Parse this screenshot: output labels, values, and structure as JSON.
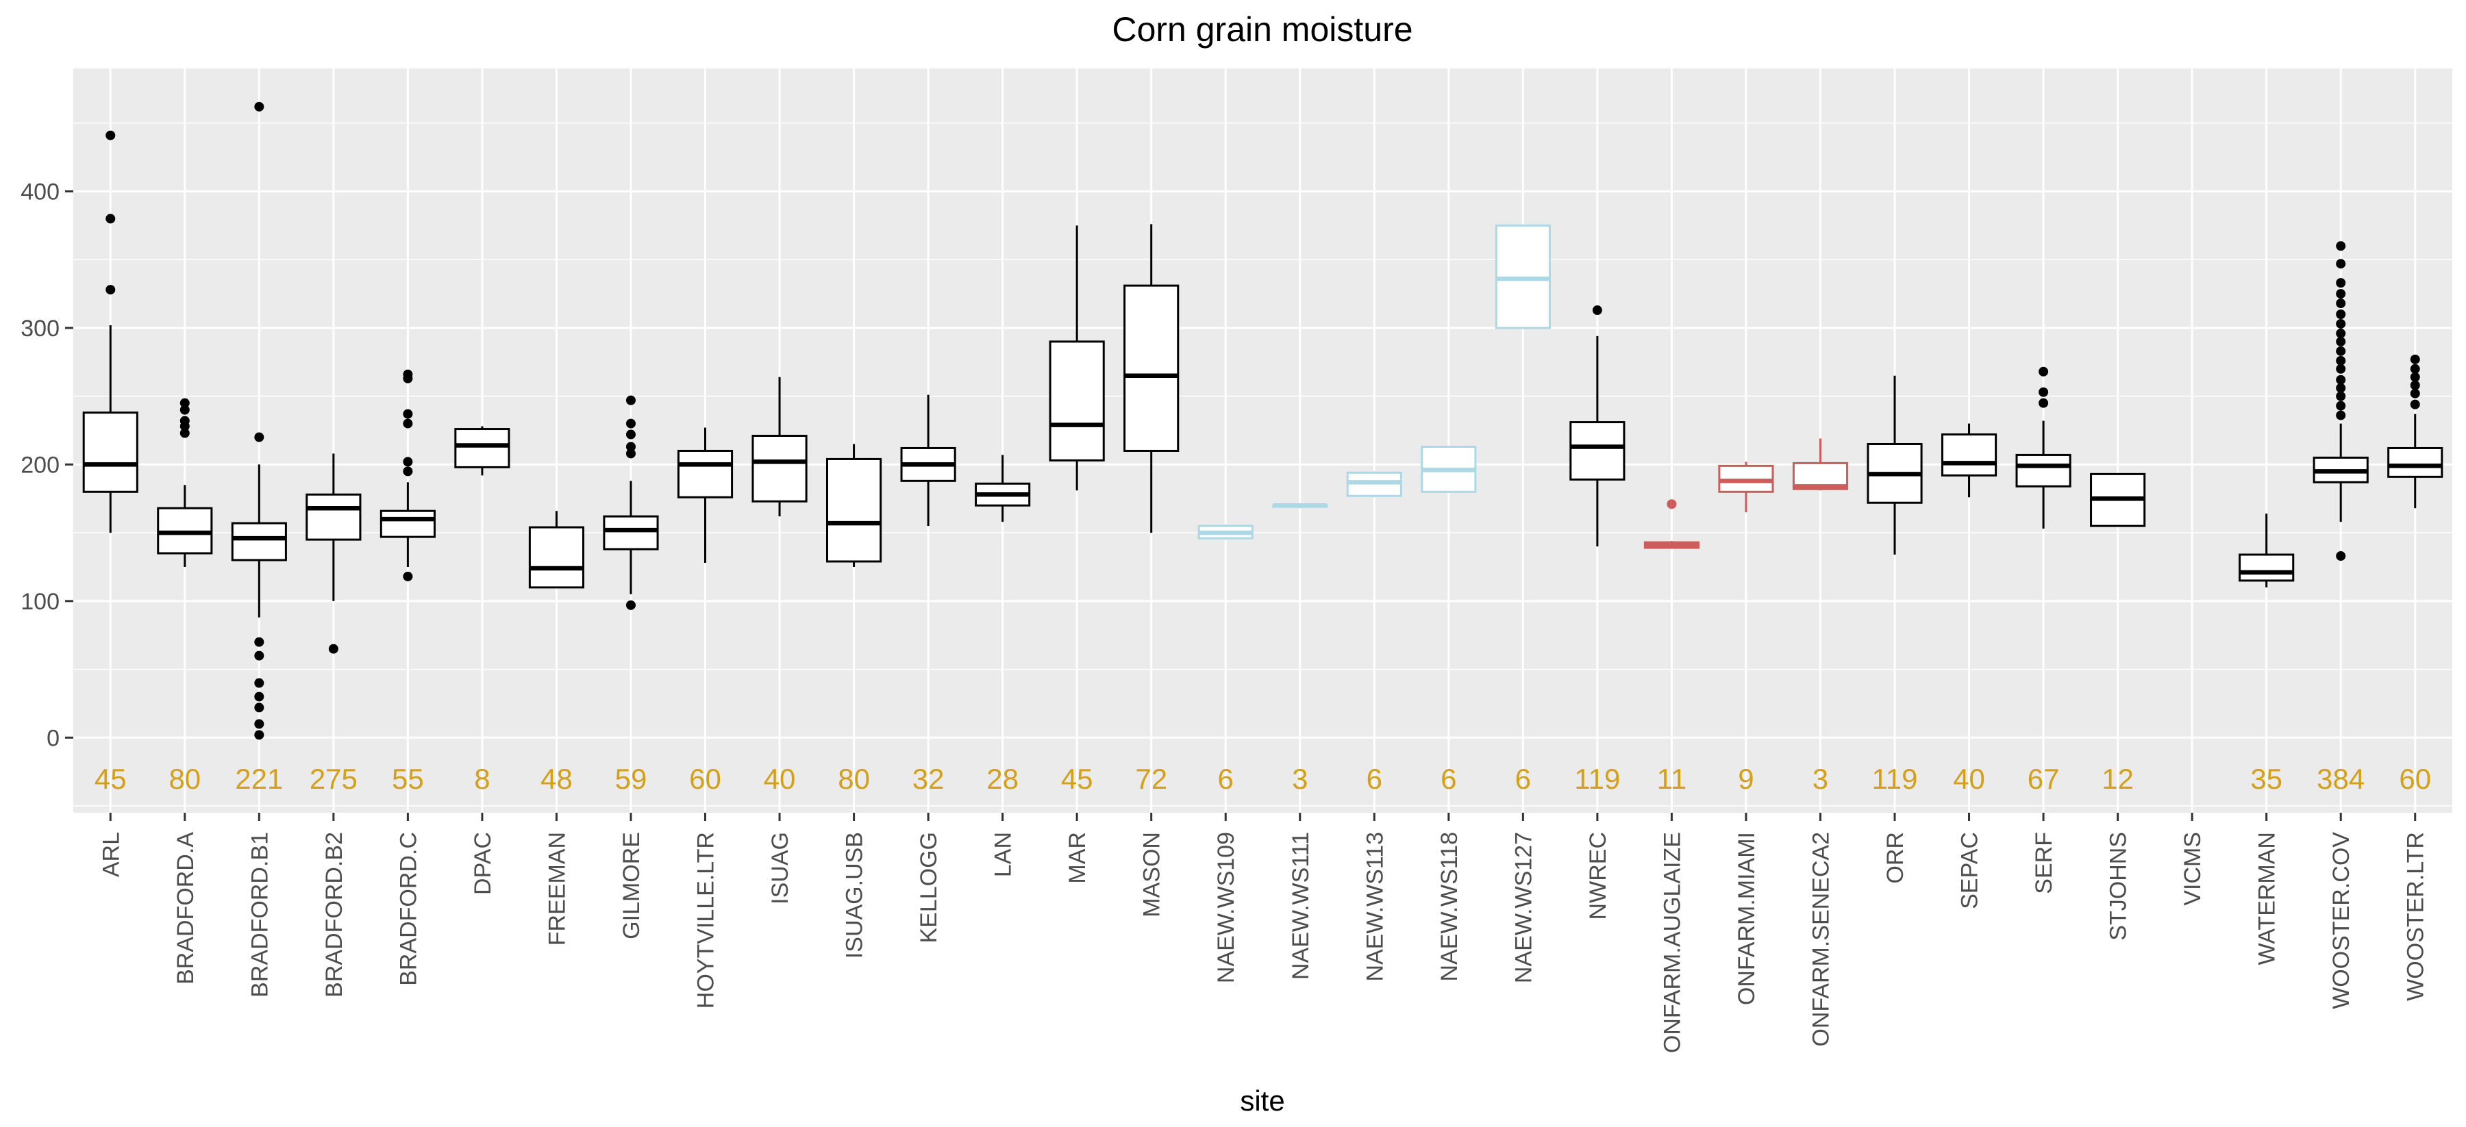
{
  "chart_data": {
    "type": "boxplot",
    "title": "Corn grain moisture",
    "xlabel": "site",
    "ylabel": "",
    "ylim": [
      -55,
      490
    ],
    "yticks": [
      0,
      100,
      200,
      300,
      400
    ],
    "grid": true,
    "legend": "none",
    "colors": {
      "panel": "#ebebeb",
      "grid": "#ffffff",
      "default_box": "#000000",
      "naew_box": "#add8e6",
      "onfarm_box": "#cd5c5c",
      "count_label": "#d4a017",
      "tick": "#4d4d4d"
    },
    "categories": [
      "ARL",
      "BRADFORD.A",
      "BRADFORD.B1",
      "BRADFORD.B2",
      "BRADFORD.C",
      "DPAC",
      "FREEMAN",
      "GILMORE",
      "HOYTVILLE.LTR",
      "ISUAG",
      "ISUAG.USB",
      "KELLOGG",
      "LAN",
      "MAR",
      "MASON",
      "NAEW.WS109",
      "NAEW.WS111",
      "NAEW.WS113",
      "NAEW.WS118",
      "NAEW.WS127",
      "NWREC",
      "ONFARM.AUGLAIZE",
      "ONFARM.MIAMI",
      "ONFARM.SENECA2",
      "ORR",
      "SEPAC",
      "SERF",
      "STJOHNS",
      "VICMS",
      "WATERMAN",
      "WOOSTER.COV",
      "WOOSTER.LTR"
    ],
    "boxes": [
      {
        "site": "ARL",
        "n": "45",
        "color": "#000000",
        "whisker_low": 150,
        "q1": 180,
        "median": 200,
        "q3": 238,
        "whisker_high": 302,
        "outliers": [
          328,
          380,
          441
        ]
      },
      {
        "site": "BRADFORD.A",
        "n": "80",
        "color": "#000000",
        "whisker_low": 125,
        "q1": 135,
        "median": 150,
        "q3": 168,
        "whisker_high": 185,
        "outliers": [
          223,
          228,
          232,
          240,
          245
        ]
      },
      {
        "site": "BRADFORD.B1",
        "n": "221",
        "color": "#000000",
        "whisker_low": 88,
        "q1": 130,
        "median": 146,
        "q3": 157,
        "whisker_high": 200,
        "outliers": [
          2,
          10,
          22,
          30,
          40,
          60,
          70,
          220,
          462
        ]
      },
      {
        "site": "BRADFORD.B2",
        "n": "275",
        "color": "#000000",
        "whisker_low": 100,
        "q1": 145,
        "median": 168,
        "q3": 178,
        "whisker_high": 208,
        "outliers": [
          65
        ]
      },
      {
        "site": "BRADFORD.C",
        "n": "55",
        "color": "#000000",
        "whisker_low": 125,
        "q1": 147,
        "median": 160,
        "q3": 166,
        "whisker_high": 187,
        "outliers": [
          118,
          195,
          202,
          230,
          237,
          263,
          266
        ]
      },
      {
        "site": "DPAC",
        "n": "8",
        "color": "#000000",
        "whisker_low": 192,
        "q1": 198,
        "median": 214,
        "q3": 226,
        "whisker_high": 228,
        "outliers": []
      },
      {
        "site": "FREEMAN",
        "n": "48",
        "color": "#000000",
        "whisker_low": 110,
        "q1": 110,
        "median": 124,
        "q3": 154,
        "whisker_high": 166,
        "outliers": []
      },
      {
        "site": "GILMORE",
        "n": "59",
        "color": "#000000",
        "whisker_low": 105,
        "q1": 138,
        "median": 152,
        "q3": 162,
        "whisker_high": 188,
        "outliers": [
          97,
          208,
          213,
          222,
          230,
          247
        ]
      },
      {
        "site": "HOYTVILLE.LTR",
        "n": "60",
        "color": "#000000",
        "whisker_low": 128,
        "q1": 176,
        "median": 200,
        "q3": 210,
        "whisker_high": 227,
        "outliers": []
      },
      {
        "site": "ISUAG",
        "n": "40",
        "color": "#000000",
        "whisker_low": 162,
        "q1": 173,
        "median": 202,
        "q3": 221,
        "whisker_high": 264,
        "outliers": []
      },
      {
        "site": "ISUAG.USB",
        "n": "80",
        "color": "#000000",
        "whisker_low": 125,
        "q1": 129,
        "median": 157,
        "q3": 204,
        "whisker_high": 215,
        "outliers": []
      },
      {
        "site": "KELLOGG",
        "n": "32",
        "color": "#000000",
        "whisker_low": 155,
        "q1": 188,
        "median": 200,
        "q3": 212,
        "whisker_high": 251,
        "outliers": []
      },
      {
        "site": "LAN",
        "n": "28",
        "color": "#000000",
        "whisker_low": 158,
        "q1": 170,
        "median": 178,
        "q3": 186,
        "whisker_high": 207,
        "outliers": []
      },
      {
        "site": "MAR",
        "n": "45",
        "color": "#000000",
        "whisker_low": 181,
        "q1": 203,
        "median": 229,
        "q3": 290,
        "whisker_high": 375,
        "outliers": []
      },
      {
        "site": "MASON",
        "n": "72",
        "color": "#000000",
        "whisker_low": 150,
        "q1": 210,
        "median": 265,
        "q3": 331,
        "whisker_high": 376,
        "outliers": []
      },
      {
        "site": "NAEW.WS109",
        "n": "6",
        "color": "#add8e6",
        "whisker_low": 145,
        "q1": 146,
        "median": 150,
        "q3": 155,
        "whisker_high": 156,
        "outliers": []
      },
      {
        "site": "NAEW.WS111",
        "n": "3",
        "color": "#add8e6",
        "whisker_low": 168,
        "q1": 169,
        "median": 170,
        "q3": 170,
        "whisker_high": 171,
        "outliers": []
      },
      {
        "site": "NAEW.WS113",
        "n": "6",
        "color": "#add8e6",
        "whisker_low": 176,
        "q1": 177,
        "median": 187,
        "q3": 194,
        "whisker_high": 195,
        "outliers": []
      },
      {
        "site": "NAEW.WS118",
        "n": "6",
        "color": "#add8e6",
        "whisker_low": 180,
        "q1": 180,
        "median": 196,
        "q3": 213,
        "whisker_high": 213,
        "outliers": []
      },
      {
        "site": "NAEW.WS127",
        "n": "6",
        "color": "#add8e6",
        "whisker_low": 300,
        "q1": 300,
        "median": 336,
        "q3": 375,
        "whisker_high": 375,
        "outliers": []
      },
      {
        "site": "NWREC",
        "n": "119",
        "color": "#000000",
        "whisker_low": 140,
        "q1": 189,
        "median": 213,
        "q3": 231,
        "whisker_high": 294,
        "outliers": [
          313
        ]
      },
      {
        "site": "ONFARM.AUGLAIZE",
        "n": "11",
        "color": "#cd5c5c",
        "whisker_low": 139,
        "q1": 139,
        "median": 141,
        "q3": 143,
        "whisker_high": 144,
        "outliers": [
          171
        ]
      },
      {
        "site": "ONFARM.MIAMI",
        "n": "9",
        "color": "#cd5c5c",
        "whisker_low": 165,
        "q1": 180,
        "median": 188,
        "q3": 199,
        "whisker_high": 202,
        "outliers": []
      },
      {
        "site": "ONFARM.SENECA2",
        "n": "3",
        "color": "#cd5c5c",
        "whisker_low": 181,
        "q1": 182,
        "median": 184,
        "q3": 201,
        "whisker_high": 219,
        "outliers": []
      },
      {
        "site": "ORR",
        "n": "119",
        "color": "#000000",
        "whisker_low": 134,
        "q1": 172,
        "median": 193,
        "q3": 215,
        "whisker_high": 265,
        "outliers": []
      },
      {
        "site": "SEPAC",
        "n": "40",
        "color": "#000000",
        "whisker_low": 176,
        "q1": 192,
        "median": 201,
        "q3": 222,
        "whisker_high": 230,
        "outliers": []
      },
      {
        "site": "SERF",
        "n": "67",
        "color": "#000000",
        "whisker_low": 153,
        "q1": 184,
        "median": 199,
        "q3": 207,
        "whisker_high": 232,
        "outliers": [
          245,
          253,
          268
        ]
      },
      {
        "site": "STJOHNS",
        "n": "12",
        "color": "#000000",
        "whisker_low": 155,
        "q1": 155,
        "median": 175,
        "q3": 193,
        "whisker_high": 193,
        "outliers": []
      },
      {
        "site": "VICMS",
        "n": "",
        "color": "#000000",
        "whisker_low": null,
        "q1": null,
        "median": null,
        "q3": null,
        "whisker_high": null,
        "outliers": []
      },
      {
        "site": "WATERMAN",
        "n": "35",
        "color": "#000000",
        "whisker_low": 110,
        "q1": 115,
        "median": 121,
        "q3": 134,
        "whisker_high": 164,
        "outliers": []
      },
      {
        "site": "WOOSTER.COV",
        "n": "384",
        "color": "#000000",
        "whisker_low": 158,
        "q1": 187,
        "median": 195,
        "q3": 205,
        "whisker_high": 230,
        "outliers": [
          133,
          236,
          243,
          250,
          256,
          262,
          270,
          276,
          283,
          290,
          296,
          303,
          310,
          318,
          325,
          333,
          347,
          360
        ]
      },
      {
        "site": "WOOSTER.LTR",
        "n": "60",
        "color": "#000000",
        "whisker_low": 168,
        "q1": 191,
        "median": 199,
        "q3": 212,
        "whisker_high": 237,
        "outliers": [
          244,
          252,
          258,
          264,
          270,
          277
        ]
      }
    ]
  }
}
